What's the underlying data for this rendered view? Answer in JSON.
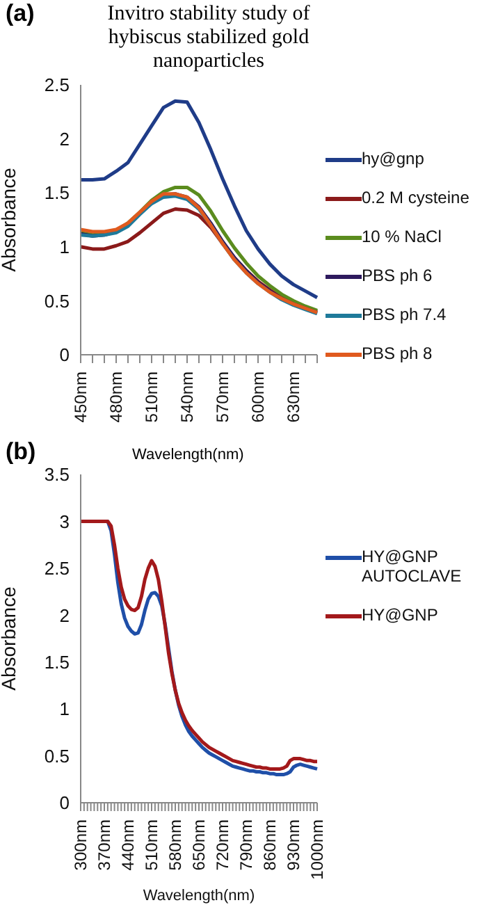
{
  "chart_data": [
    {
      "type": "line",
      "title": "Invitro stability study of hybiscus stabilized gold nanoparticles",
      "ylabel": "Absorbance",
      "annotations": [
        "(a)"
      ],
      "categories": [
        "450nm",
        null,
        null,
        "480nm",
        null,
        null,
        "510nm",
        null,
        null,
        "540nm",
        null,
        null,
        "570nm",
        null,
        null,
        "600nm",
        null,
        null,
        "630nm",
        null,
        null
      ],
      "series": [
        {
          "name": "hy@gnp",
          "color": "#1f3c88",
          "values": [
            1.62,
            1.62,
            1.63,
            1.7,
            1.78,
            1.95,
            2.12,
            2.29,
            2.35,
            2.34,
            2.15,
            1.9,
            1.63,
            1.38,
            1.15,
            0.98,
            0.84,
            0.73,
            0.65,
            0.59,
            0.53
          ]
        },
        {
          "name": "0.2 M cysteine",
          "color": "#8b1a1a",
          "values": [
            1.0,
            0.98,
            0.98,
            1.01,
            1.05,
            1.13,
            1.22,
            1.31,
            1.35,
            1.34,
            1.29,
            1.18,
            1.03,
            0.9,
            0.78,
            0.68,
            0.6,
            0.53,
            0.48,
            0.44,
            0.4
          ]
        },
        {
          "name": "10 % NaCl",
          "color": "#5b8c1e",
          "values": [
            1.13,
            1.11,
            1.12,
            1.15,
            1.22,
            1.32,
            1.43,
            1.51,
            1.55,
            1.55,
            1.48,
            1.33,
            1.15,
            0.99,
            0.85,
            0.73,
            0.64,
            0.56,
            0.5,
            0.45,
            0.41
          ]
        },
        {
          "name": "PBS ph 6",
          "color": "#2e1a5e",
          "values": [
            1.12,
            1.1,
            1.11,
            1.14,
            1.2,
            1.31,
            1.41,
            1.48,
            1.49,
            1.46,
            1.37,
            1.22,
            1.05,
            0.9,
            0.78,
            0.67,
            0.59,
            0.52,
            0.47,
            0.43,
            0.39
          ]
        },
        {
          "name": "PBS ph 7.4",
          "color": "#1f7a9a",
          "values": [
            1.11,
            1.1,
            1.11,
            1.13,
            1.19,
            1.3,
            1.4,
            1.46,
            1.47,
            1.44,
            1.35,
            1.2,
            1.03,
            0.88,
            0.76,
            0.66,
            0.58,
            0.51,
            0.46,
            0.42,
            0.38
          ]
        },
        {
          "name": "PBS ph 8",
          "color": "#e05a1e",
          "values": [
            1.16,
            1.14,
            1.14,
            1.16,
            1.22,
            1.32,
            1.42,
            1.49,
            1.49,
            1.46,
            1.36,
            1.2,
            1.03,
            0.88,
            0.76,
            0.66,
            0.58,
            0.52,
            0.47,
            0.43,
            0.39
          ]
        }
      ],
      "ylim": [
        0,
        2.5
      ],
      "yticks": [
        0,
        0.5,
        1,
        1.5,
        2,
        2.5
      ],
      "grid": false,
      "legend": "right",
      "marker": "none"
    },
    {
      "type": "line",
      "title": "Wavelength(nm)",
      "xlabel": "Wavelength(nm)",
      "ylabel": "Absorbance",
      "annotations": [
        "(b)"
      ],
      "categories": [
        "300nm",
        null,
        null,
        null,
        null,
        null,
        null,
        "370nm",
        null,
        null,
        null,
        null,
        null,
        null,
        "440nm",
        null,
        null,
        null,
        null,
        null,
        null,
        "510nm",
        null,
        null,
        null,
        null,
        null,
        null,
        "580nm",
        null,
        null,
        null,
        null,
        null,
        null,
        "650nm",
        null,
        null,
        null,
        null,
        null,
        null,
        "720nm",
        null,
        null,
        null,
        null,
        null,
        null,
        "790nm",
        null,
        null,
        null,
        null,
        null,
        null,
        "860nm",
        null,
        null,
        null,
        null,
        null,
        null,
        "930nm",
        null,
        null,
        null,
        null,
        null,
        null,
        "1000nm"
      ],
      "series": [
        {
          "name": "HY@GNP AUTOCLAVE",
          "color": "#1f4fa8",
          "values": [
            null,
            null,
            null,
            null,
            null,
            null,
            null,
            3,
            3,
            2.9,
            2.65,
            2.35,
            2.12,
            1.97,
            1.88,
            1.83,
            1.8,
            1.81,
            1.9,
            2.05,
            2.17,
            2.23,
            2.24,
            2.2,
            2.1,
            1.9,
            1.65,
            1.4,
            1.2,
            1.04,
            0.92,
            0.83,
            0.76,
            0.71,
            0.67,
            0.63,
            0.59,
            0.56,
            0.53,
            0.51,
            0.49,
            0.47,
            0.45,
            0.43,
            0.41,
            0.39,
            0.38,
            0.37,
            0.36,
            0.35,
            0.34,
            0.34,
            0.33,
            0.33,
            0.32,
            0.32,
            0.31,
            0.31,
            0.3,
            0.3,
            0.3,
            0.31,
            0.33,
            0.38,
            0.4,
            0.41,
            0.4,
            0.39,
            0.38,
            0.37,
            0.36
          ]
        },
        {
          "name": "HY@GNP",
          "color": "#a3191b",
          "values": [
            3,
            3,
            3,
            3,
            3,
            3,
            3,
            3,
            3,
            2.95,
            2.75,
            2.5,
            2.3,
            2.17,
            2.1,
            2.06,
            2.05,
            2.08,
            2.2,
            2.38,
            2.5,
            2.58,
            2.52,
            2.38,
            2.15,
            1.88,
            1.6,
            1.38,
            1.2,
            1.06,
            0.96,
            0.88,
            0.82,
            0.77,
            0.73,
            0.69,
            0.65,
            0.62,
            0.59,
            0.57,
            0.55,
            0.53,
            0.51,
            0.49,
            0.47,
            0.45,
            0.44,
            0.43,
            0.42,
            0.41,
            0.4,
            0.39,
            0.38,
            0.38,
            0.37,
            0.37,
            0.36,
            0.36,
            0.36,
            0.36,
            0.37,
            0.39,
            0.45,
            0.47,
            0.47,
            0.47,
            0.46,
            0.45,
            0.45,
            0.44,
            0.44
          ]
        }
      ],
      "ylim": [
        0,
        3.5
      ],
      "yticks": [
        0,
        0.5,
        1,
        1.5,
        2,
        2.5,
        3,
        3.5
      ],
      "grid": false,
      "legend": "top right",
      "marker": "none"
    }
  ]
}
